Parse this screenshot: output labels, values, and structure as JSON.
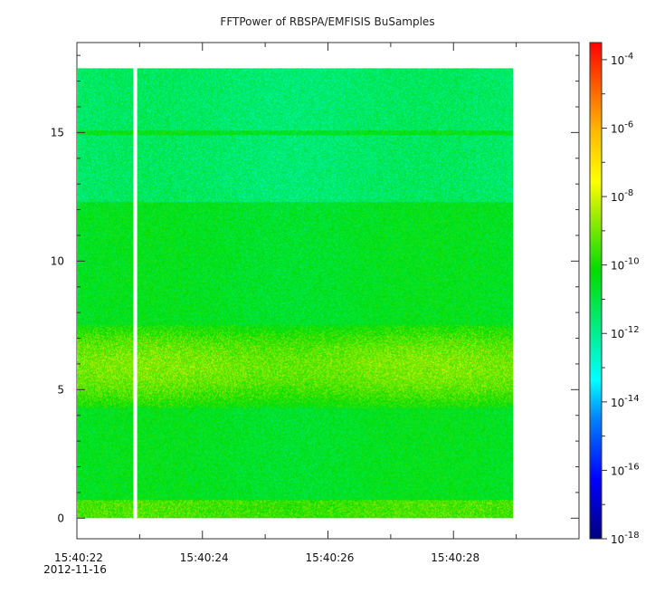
{
  "title": "FFTPower of RBSPA/EMFISIS  BuSamples",
  "chart_data": {
    "type": "heatmap",
    "title": "FFTPower of RBSPA/EMFISIS  BuSamples",
    "xlabel": "",
    "ylabel": "",
    "x_axis": {
      "type": "time",
      "range": [
        "15:40:22",
        "15:40:30"
      ],
      "tick_labels": [
        "15:40:22",
        "15:40:24",
        "15:40:26",
        "15:40:28"
      ],
      "tick_values_seconds": [
        22,
        24,
        26,
        28
      ],
      "date_label": "2012-11-16"
    },
    "y_axis": {
      "range": [
        -0.8,
        18.5
      ],
      "tick_values": [
        0,
        5,
        10,
        15
      ],
      "tick_labels": [
        "0",
        "5",
        "10",
        "15"
      ]
    },
    "data_extent": {
      "x_seconds": [
        22.0,
        28.95
      ],
      "y": [
        0.0,
        17.5
      ]
    },
    "data_gap_seconds": [
      22.9,
      22.96
    ],
    "spectral_features": [
      {
        "feature": "low-frequency enhancement",
        "y_range": [
          0.0,
          0.7
        ],
        "level_exp": -9.5
      },
      {
        "feature": "broad enhancement band",
        "y_range": [
          4.5,
          7.3
        ],
        "level_exp": -9.0
      },
      {
        "feature": "background",
        "y_range": [
          0.7,
          12.3
        ],
        "level_exp": -10.5
      },
      {
        "feature": "upper band",
        "y_range": [
          12.3,
          17.5
        ],
        "level_exp": -11.5
      },
      {
        "feature": "narrow line",
        "y": 15.0,
        "level_exp": -10.5
      }
    ],
    "colorbar": {
      "scale": "log",
      "range": [
        "1e-18",
        "1e-3.5"
      ],
      "tick_exponents": [
        "-4",
        "-6",
        "-8",
        "-10",
        "-12",
        "-14",
        "-16",
        "-18"
      ],
      "colormap": "rainbow (dark blue → cyan → green → yellow → orange → red)"
    }
  }
}
